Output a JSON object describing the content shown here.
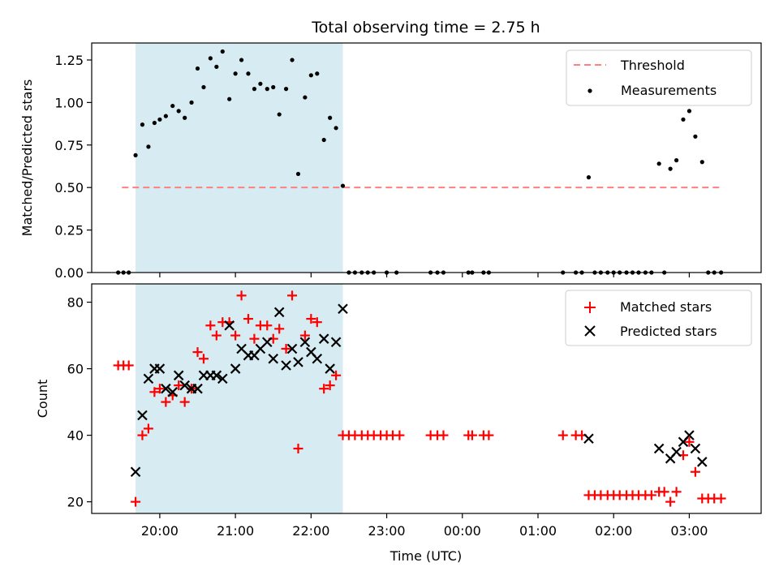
{
  "chart_data": [
    {
      "type": "scatter",
      "title": "Total observing time = 2.75 h",
      "ylabel": "Matched/Predicted stars",
      "xlabel": "",
      "ylim": [
        0,
        1.35
      ],
      "yticks": [
        "0.00",
        "0.25",
        "0.50",
        "0.75",
        "1.00",
        "1.25"
      ],
      "ytick_values": [
        0,
        0.25,
        0.5,
        0.75,
        1.0,
        1.25
      ],
      "xlim": [
        19.1,
        27.95
      ],
      "shaded_span": [
        19.68,
        22.42
      ],
      "shade_color": "#add8e6",
      "threshold": {
        "name": "Threshold",
        "value": 0.5,
        "x_range": [
          19.5,
          27.45
        ],
        "color": "#ff7f7f"
      },
      "legend_position": "upper right",
      "series": [
        {
          "name": "Measurements",
          "color": "#000000",
          "points": [
            [
              19.45,
              0.0
            ],
            [
              19.52,
              0.0
            ],
            [
              19.59,
              0.0
            ],
            [
              19.68,
              0.69
            ],
            [
              19.77,
              0.87
            ],
            [
              19.85,
              0.74
            ],
            [
              19.93,
              0.88
            ],
            [
              20.0,
              0.9
            ],
            [
              20.08,
              0.92
            ],
            [
              20.17,
              0.98
            ],
            [
              20.25,
              0.95
            ],
            [
              20.33,
              0.91
            ],
            [
              20.42,
              1.0
            ],
            [
              20.5,
              1.2
            ],
            [
              20.58,
              1.09
            ],
            [
              20.67,
              1.26
            ],
            [
              20.75,
              1.21
            ],
            [
              20.83,
              1.3
            ],
            [
              20.92,
              1.02
            ],
            [
              21.0,
              1.17
            ],
            [
              21.08,
              1.25
            ],
            [
              21.17,
              1.17
            ],
            [
              21.25,
              1.08
            ],
            [
              21.33,
              1.11
            ],
            [
              21.42,
              1.08
            ],
            [
              21.5,
              1.09
            ],
            [
              21.58,
              0.93
            ],
            [
              21.67,
              1.08
            ],
            [
              21.75,
              1.25
            ],
            [
              21.83,
              0.58
            ],
            [
              21.92,
              1.03
            ],
            [
              22.0,
              1.16
            ],
            [
              22.08,
              1.17
            ],
            [
              22.17,
              0.78
            ],
            [
              22.25,
              0.91
            ],
            [
              22.33,
              0.85
            ],
            [
              22.42,
              0.51
            ],
            [
              22.5,
              0.0
            ],
            [
              22.58,
              0.0
            ],
            [
              22.67,
              0.0
            ],
            [
              22.75,
              0.0
            ],
            [
              22.83,
              0.0
            ],
            [
              23.0,
              0.0
            ],
            [
              23.13,
              0.0
            ],
            [
              23.58,
              0.0
            ],
            [
              23.67,
              0.0
            ],
            [
              23.75,
              0.0
            ],
            [
              24.08,
              0.0
            ],
            [
              24.13,
              0.0
            ],
            [
              24.28,
              0.0
            ],
            [
              24.35,
              0.0
            ],
            [
              25.33,
              0.0
            ],
            [
              25.5,
              0.0
            ],
            [
              25.58,
              0.0
            ],
            [
              25.67,
              0.56
            ],
            [
              25.75,
              0.0
            ],
            [
              25.83,
              0.0
            ],
            [
              25.92,
              0.0
            ],
            [
              26.0,
              0.0
            ],
            [
              26.08,
              0.0
            ],
            [
              26.17,
              0.0
            ],
            [
              26.25,
              0.0
            ],
            [
              26.33,
              0.0
            ],
            [
              26.42,
              0.0
            ],
            [
              26.5,
              0.0
            ],
            [
              26.6,
              0.64
            ],
            [
              26.67,
              0.0
            ],
            [
              26.75,
              0.61
            ],
            [
              26.83,
              0.66
            ],
            [
              26.92,
              0.9
            ],
            [
              27.0,
              0.95
            ],
            [
              27.08,
              0.8
            ],
            [
              27.17,
              0.65
            ],
            [
              27.25,
              0.0
            ],
            [
              27.33,
              0.0
            ],
            [
              27.42,
              0.0
            ]
          ]
        }
      ]
    },
    {
      "type": "scatter",
      "title": "",
      "ylabel": "Count",
      "xlabel": "Time (UTC)",
      "ylim": [
        16.5,
        85.5
      ],
      "yticks": [
        "20",
        "40",
        "60",
        "80"
      ],
      "ytick_values": [
        20,
        40,
        60,
        80
      ],
      "xlim": [
        19.1,
        27.95
      ],
      "x_tick_values": [
        20,
        21,
        22,
        23,
        24,
        25,
        26,
        27
      ],
      "x_tick_labels": [
        "20:00",
        "21:00",
        "22:00",
        "23:00",
        "00:00",
        "01:00",
        "02:00",
        "03:00"
      ],
      "shaded_span": [
        19.68,
        22.42
      ],
      "shade_color": "#add8e6",
      "legend_position": "upper right",
      "series": [
        {
          "name": "Matched stars",
          "marker": "+",
          "color": "#ff0000",
          "points": [
            [
              19.45,
              61
            ],
            [
              19.52,
              61
            ],
            [
              19.59,
              61
            ],
            [
              19.68,
              20
            ],
            [
              19.77,
              40
            ],
            [
              19.85,
              42
            ],
            [
              19.93,
              53
            ],
            [
              20.0,
              54
            ],
            [
              20.08,
              50
            ],
            [
              20.17,
              52
            ],
            [
              20.25,
              55
            ],
            [
              20.33,
              50
            ],
            [
              20.42,
              54
            ],
            [
              20.5,
              65
            ],
            [
              20.58,
              63
            ],
            [
              20.67,
              73
            ],
            [
              20.75,
              70
            ],
            [
              20.83,
              74
            ],
            [
              20.92,
              74
            ],
            [
              21.0,
              70
            ],
            [
              21.08,
              82
            ],
            [
              21.17,
              75
            ],
            [
              21.25,
              69
            ],
            [
              21.33,
              73
            ],
            [
              21.42,
              73
            ],
            [
              21.5,
              69
            ],
            [
              21.58,
              72
            ],
            [
              21.67,
              66
            ],
            [
              21.75,
              82
            ],
            [
              21.83,
              36
            ],
            [
              21.92,
              70
            ],
            [
              22.0,
              75
            ],
            [
              22.08,
              74
            ],
            [
              22.17,
              54
            ],
            [
              22.25,
              55
            ],
            [
              22.33,
              58
            ],
            [
              22.42,
              40
            ],
            [
              22.5,
              40
            ],
            [
              22.58,
              40
            ],
            [
              22.67,
              40
            ],
            [
              22.75,
              40
            ],
            [
              22.83,
              40
            ],
            [
              22.92,
              40
            ],
            [
              23.0,
              40
            ],
            [
              23.08,
              40
            ],
            [
              23.17,
              40
            ],
            [
              23.58,
              40
            ],
            [
              23.67,
              40
            ],
            [
              23.75,
              40
            ],
            [
              24.08,
              40
            ],
            [
              24.13,
              40
            ],
            [
              24.28,
              40
            ],
            [
              24.35,
              40
            ],
            [
              25.33,
              40
            ],
            [
              25.5,
              40
            ],
            [
              25.58,
              40
            ],
            [
              25.67,
              22
            ],
            [
              25.75,
              22
            ],
            [
              25.83,
              22
            ],
            [
              25.92,
              22
            ],
            [
              26.0,
              22
            ],
            [
              26.08,
              22
            ],
            [
              26.17,
              22
            ],
            [
              26.25,
              22
            ],
            [
              26.33,
              22
            ],
            [
              26.42,
              22
            ],
            [
              26.5,
              22
            ],
            [
              26.6,
              23
            ],
            [
              26.67,
              23
            ],
            [
              26.75,
              20
            ],
            [
              26.83,
              23
            ],
            [
              26.92,
              34
            ],
            [
              27.0,
              38
            ],
            [
              27.08,
              29
            ],
            [
              27.17,
              21
            ],
            [
              27.25,
              21
            ],
            [
              27.33,
              21
            ],
            [
              27.42,
              21
            ]
          ]
        },
        {
          "name": "Predicted stars",
          "marker": "x",
          "color": "#000000",
          "points": [
            [
              19.68,
              29
            ],
            [
              19.77,
              46
            ],
            [
              19.85,
              57
            ],
            [
              19.93,
              60
            ],
            [
              20.0,
              60
            ],
            [
              20.08,
              54
            ],
            [
              20.17,
              53
            ],
            [
              20.25,
              58
            ],
            [
              20.33,
              55
            ],
            [
              20.42,
              54
            ],
            [
              20.5,
              54
            ],
            [
              20.58,
              58
            ],
            [
              20.67,
              58
            ],
            [
              20.75,
              58
            ],
            [
              20.83,
              57
            ],
            [
              20.92,
              73
            ],
            [
              21.0,
              60
            ],
            [
              21.08,
              66
            ],
            [
              21.17,
              64
            ],
            [
              21.25,
              64
            ],
            [
              21.33,
              66
            ],
            [
              21.42,
              68
            ],
            [
              21.5,
              63
            ],
            [
              21.58,
              77
            ],
            [
              21.67,
              61
            ],
            [
              21.75,
              66
            ],
            [
              21.83,
              62
            ],
            [
              21.92,
              68
            ],
            [
              22.0,
              65
            ],
            [
              22.08,
              63
            ],
            [
              22.17,
              69
            ],
            [
              22.25,
              60
            ],
            [
              22.33,
              68
            ],
            [
              22.42,
              78
            ],
            [
              25.67,
              39
            ],
            [
              26.6,
              36
            ],
            [
              26.75,
              33
            ],
            [
              26.83,
              35
            ],
            [
              26.92,
              38
            ],
            [
              27.0,
              40
            ],
            [
              27.08,
              36
            ],
            [
              27.17,
              32
            ]
          ]
        }
      ]
    }
  ]
}
